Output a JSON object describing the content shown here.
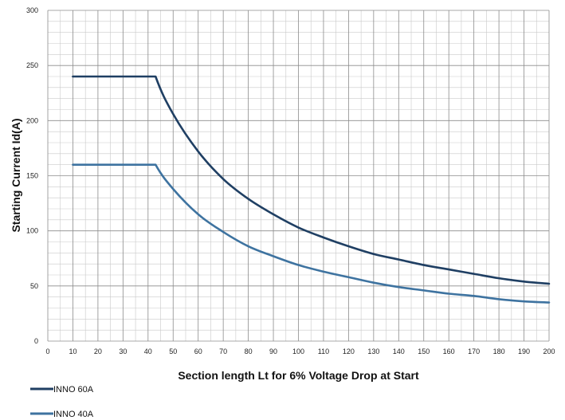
{
  "chart_data": {
    "type": "line",
    "title": "",
    "xlabel": "Section length  Lt for 6% Voltage Drop at Start",
    "ylabel": "Starting Current  Id(A)",
    "xlim": [
      0,
      200
    ],
    "ylim": [
      0,
      300
    ],
    "x_ticks": [
      0,
      10,
      20,
      30,
      40,
      50,
      60,
      70,
      80,
      90,
      100,
      110,
      120,
      130,
      140,
      150,
      160,
      170,
      180,
      190,
      200
    ],
    "y_ticks": [
      0,
      50,
      100,
      150,
      200,
      250,
      300
    ],
    "x_minor_step": 5,
    "y_minor_step": 10,
    "grid": true,
    "legend_position": "bottom-left",
    "series": [
      {
        "name": "INNO 60A",
        "color": "#1f3f63",
        "x": [
          10,
          20,
          30,
          40,
          43,
          50,
          60,
          70,
          80,
          90,
          100,
          110,
          120,
          130,
          140,
          150,
          160,
          170,
          180,
          190,
          200
        ],
        "y": [
          240,
          240,
          240,
          240,
          240,
          206,
          172,
          147,
          129,
          115,
          103,
          94,
          86,
          79,
          74,
          69,
          65,
          61,
          57,
          54,
          52
        ]
      },
      {
        "name": "INNO 40A",
        "color": "#3e73a0",
        "x": [
          10,
          20,
          30,
          40,
          43,
          50,
          60,
          70,
          80,
          90,
          100,
          110,
          120,
          130,
          140,
          150,
          160,
          170,
          180,
          190,
          200
        ],
        "y": [
          160,
          160,
          160,
          160,
          160,
          138,
          115,
          99,
          86,
          77,
          69,
          63,
          58,
          53,
          49,
          46,
          43,
          41,
          38,
          36,
          35
        ]
      }
    ]
  }
}
